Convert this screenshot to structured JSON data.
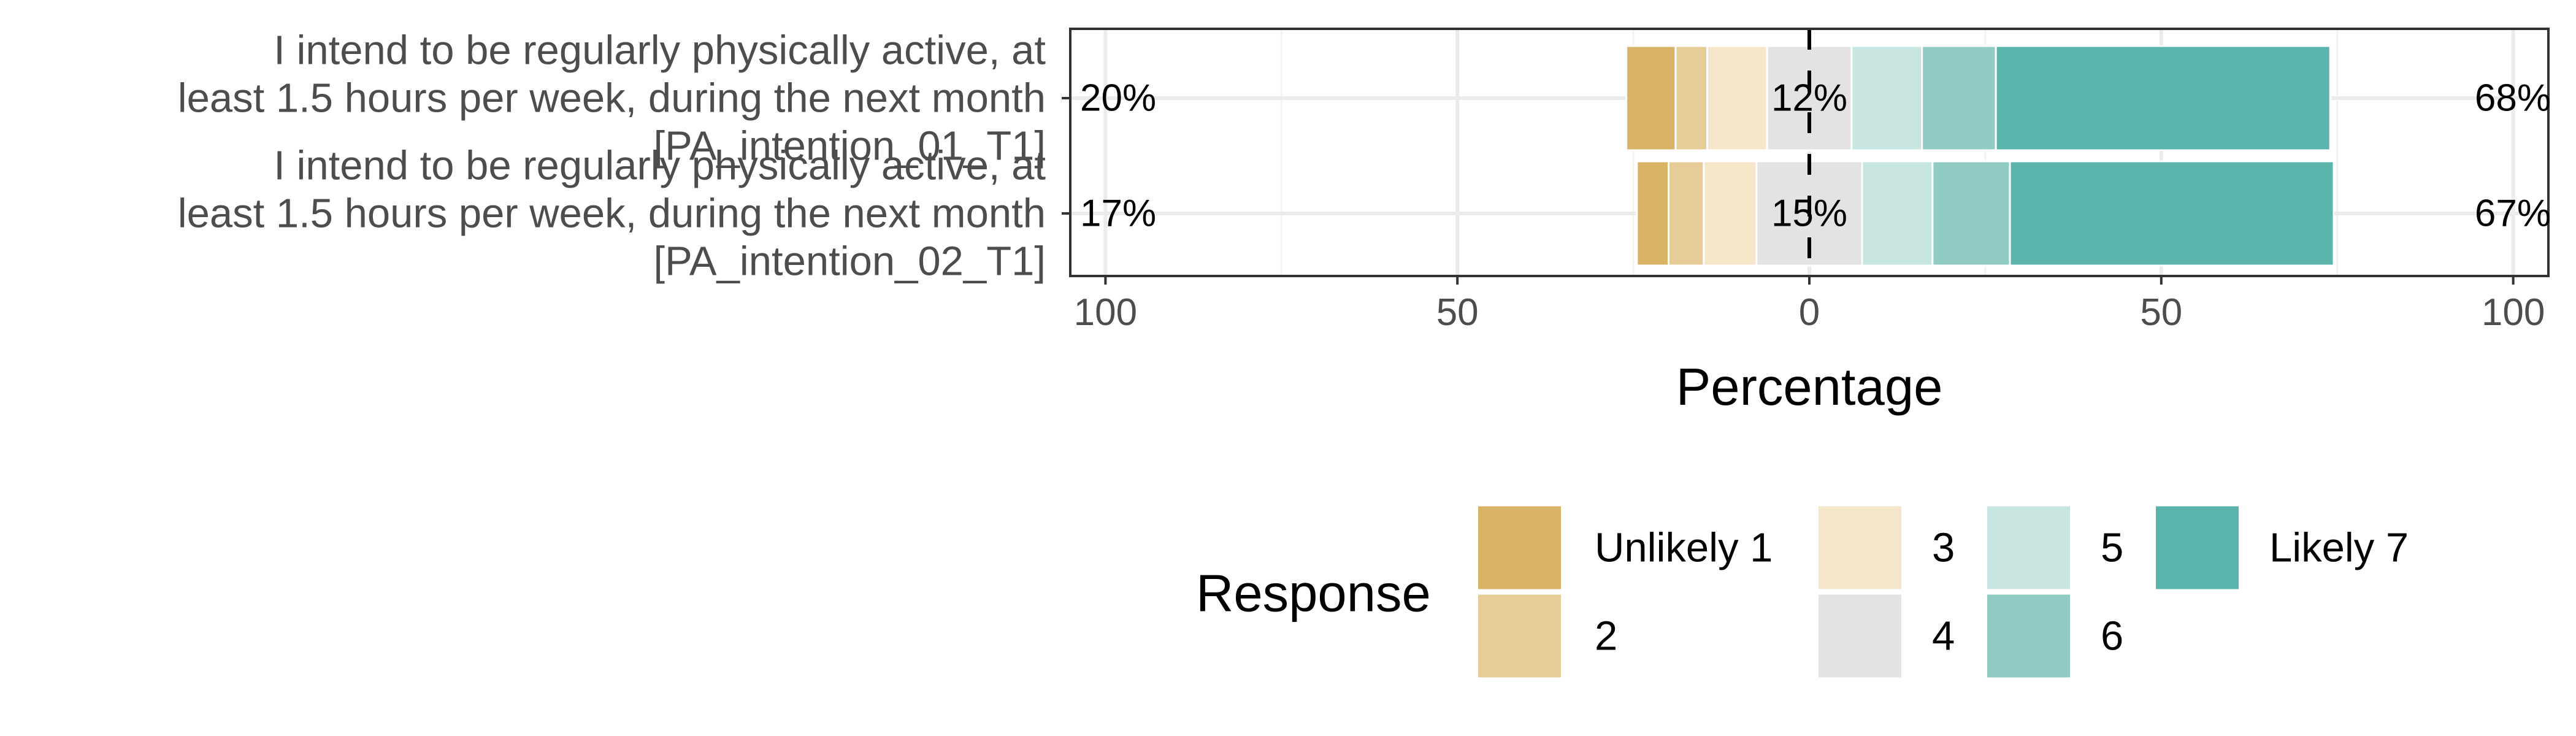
{
  "chart_data": {
    "type": "bar",
    "orientation": "horizontal",
    "stacked": "diverging",
    "categories": [
      [
        "I intend to be regularly physically active, at",
        "least 1.5 hours per week, during the next month",
        "[PA_intention_01_T1]"
      ],
      [
        "I intend to be regularly physically active, at",
        "least 1.5 hours per week, during the next month",
        "[PA_intention_02_T1]"
      ]
    ],
    "responses": [
      {
        "name": "Unlikely 1",
        "color": "#D8B365"
      },
      {
        "name": "2",
        "color": "#E6CD98"
      },
      {
        "name": "3",
        "color": "#F5E6C9"
      },
      {
        "name": "4",
        "color": "#E3E3E3"
      },
      {
        "name": "5",
        "color": "#C7E6E2"
      },
      {
        "name": "6",
        "color": "#91CCC4"
      },
      {
        "name": "Likely 7",
        "color": "#5AB4AC"
      }
    ],
    "values": [
      [
        7,
        4.5,
        8.5,
        12,
        10,
        10.5,
        47.5
      ],
      [
        4.5,
        5,
        7.5,
        15,
        10,
        11,
        46
      ]
    ],
    "low_labels": [
      "20%",
      "17%"
    ],
    "neutral_labels": [
      "12%",
      "15%"
    ],
    "high_labels": [
      "68%",
      "67%"
    ],
    "xlim": [
      -105,
      105
    ],
    "xticks": [
      -100,
      -50,
      0,
      50,
      100
    ],
    "xtick_labels": [
      "100",
      "50",
      "0",
      "50",
      "100"
    ],
    "xlabel": "Percentage",
    "ylabel": "",
    "grid": true,
    "legend": {
      "title": "Response",
      "position": "bottom"
    }
  }
}
